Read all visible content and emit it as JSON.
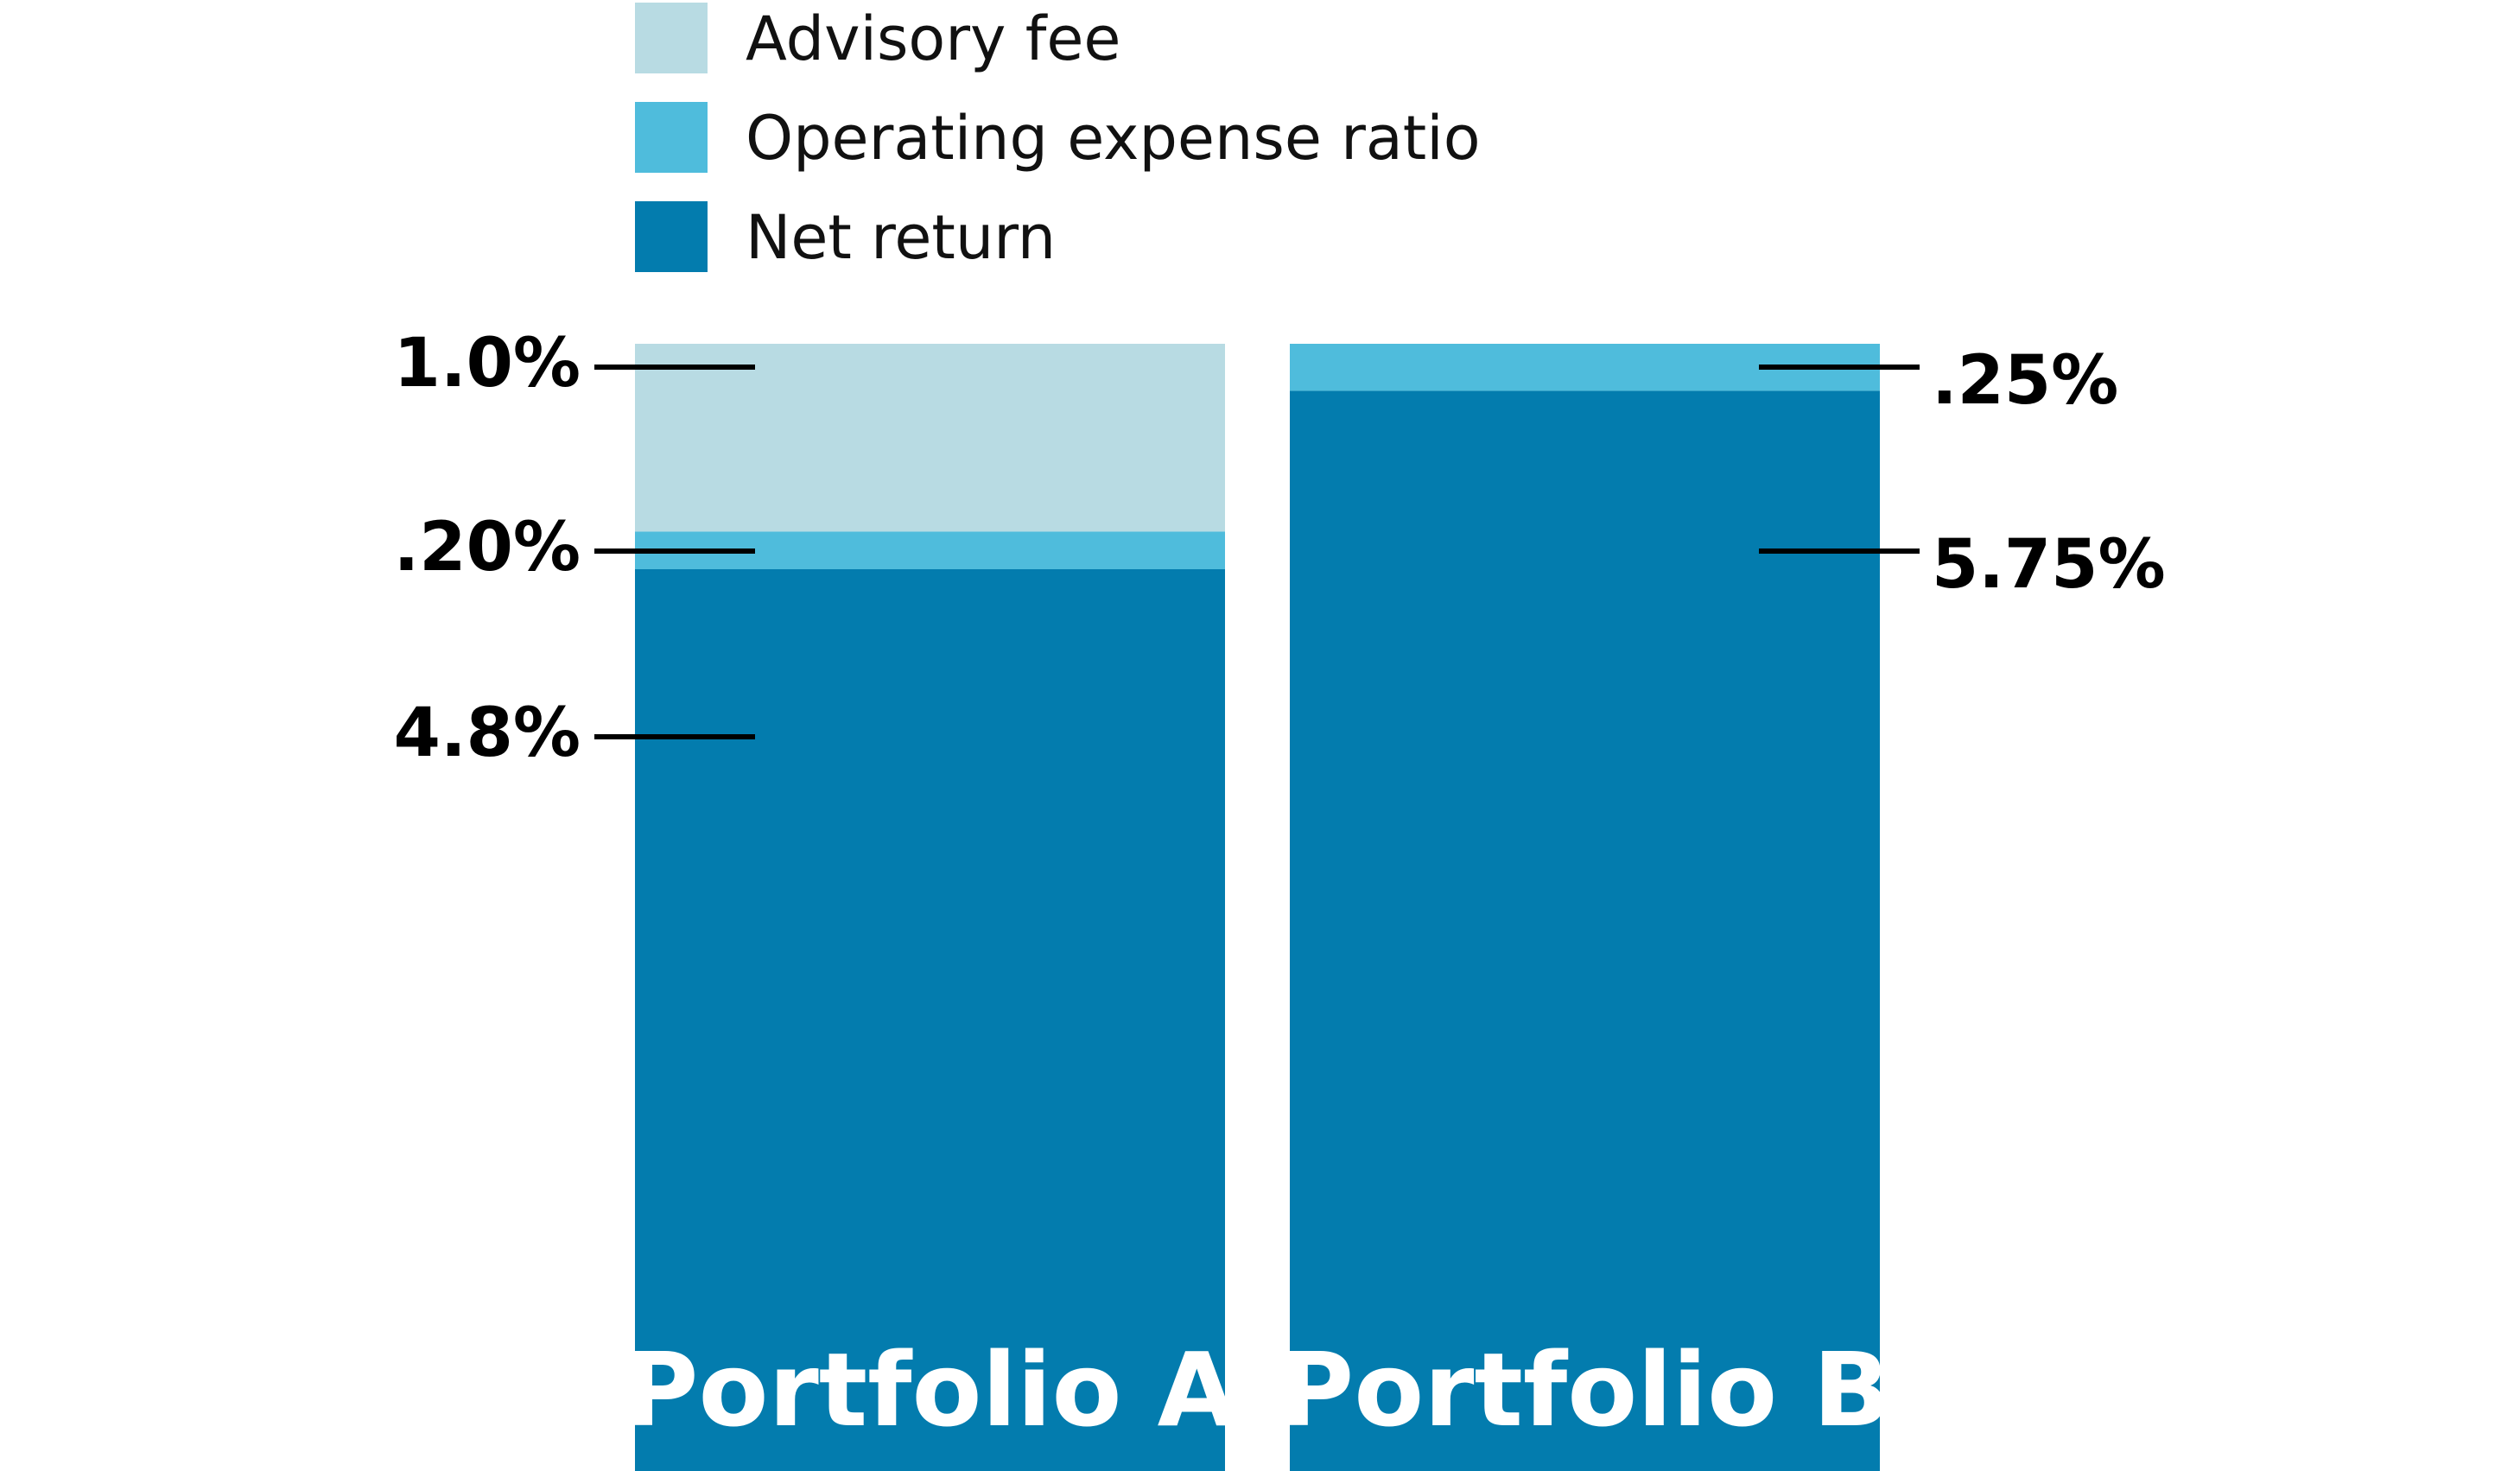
{
  "chart_data": {
    "type": "bar",
    "stacked": true,
    "categories": [
      "Portfolio A",
      "Portfolio B"
    ],
    "series": [
      {
        "name": "Net return",
        "color": "#037cae",
        "values": [
          4.8,
          5.75
        ],
        "labels": [
          "4.8%",
          "5.75%"
        ]
      },
      {
        "name": "Operating expense ratio",
        "color": "#4fbcdc",
        "values": [
          0.2,
          0.25
        ],
        "labels": [
          ".20%",
          ".25%"
        ]
      },
      {
        "name": "Advisory fee",
        "color": "#b8dbe3",
        "values": [
          1.0,
          0
        ],
        "labels": [
          "1.0%",
          ""
        ]
      }
    ],
    "legend": {
      "position": "top",
      "entries": [
        "Advisory fee",
        "Operating expense ratio",
        "Net return"
      ]
    },
    "label_side": [
      "left",
      "right"
    ],
    "ylim": [
      0,
      6
    ],
    "grid": false,
    "title": "",
    "xlabel": "",
    "ylabel": ""
  }
}
